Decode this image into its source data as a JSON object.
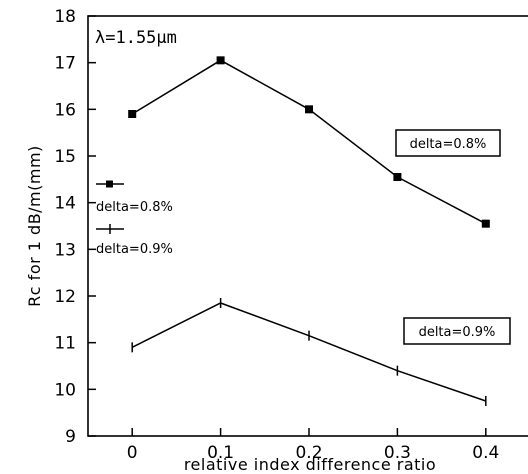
{
  "chart_data": {
    "type": "line",
    "xlabel": "relative index difference ratio",
    "ylabel": "Rc for 1 dB/m(mm)",
    "annotation": "λ=1.55μm",
    "x": [
      0,
      0.1,
      0.2,
      0.3,
      0.4
    ],
    "x_tick_labels": [
      "0",
      "0.1",
      "0.2",
      "0.3",
      "0.4"
    ],
    "y_tick_labels": [
      "9",
      "10",
      "11",
      "12",
      "13",
      "14",
      "15",
      "16",
      "17",
      "18"
    ],
    "xlim": [
      -0.05,
      0.45
    ],
    "ylim": [
      9,
      18
    ],
    "grid": false,
    "legend_position": "left",
    "series": [
      {
        "name": "delta=0.8%",
        "marker": "square",
        "values": [
          15.9,
          17.05,
          16.0,
          14.55,
          13.55
        ],
        "box_label": "delta=0.8%"
      },
      {
        "name": "delta=0.9%",
        "marker": "plus",
        "values": [
          10.9,
          11.85,
          11.15,
          10.4,
          9.75
        ],
        "box_label": "delta=0.9%"
      }
    ]
  }
}
